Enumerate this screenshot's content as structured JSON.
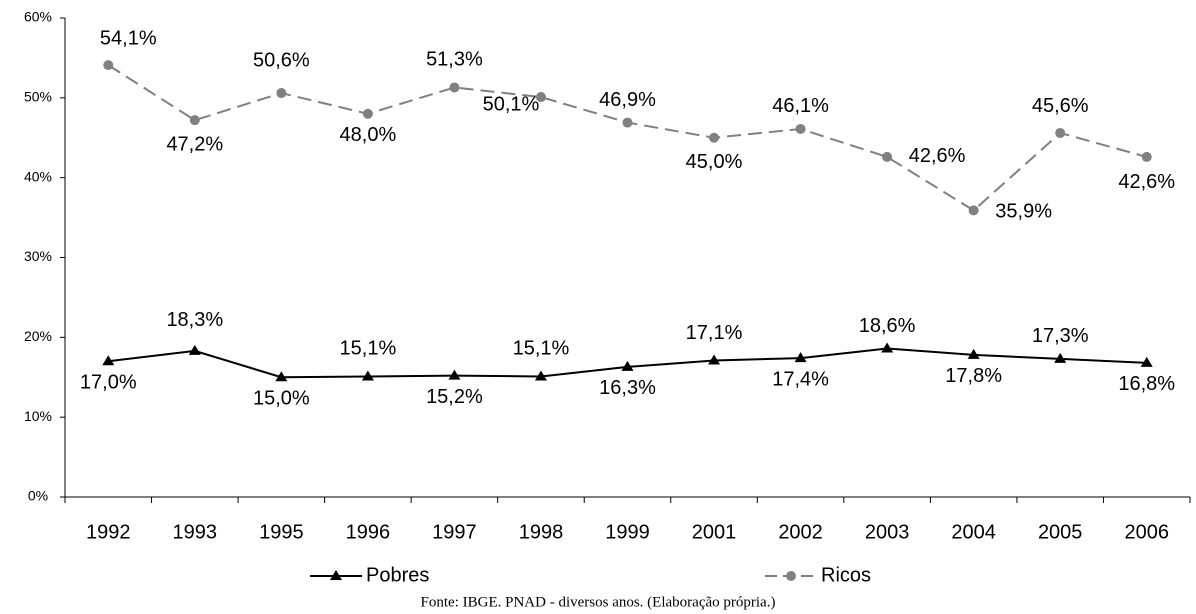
{
  "chart_data": {
    "type": "line",
    "categories": [
      "1992",
      "1993",
      "1995",
      "1996",
      "1997",
      "1998",
      "1999",
      "2001",
      "2002",
      "2003",
      "2004",
      "2005",
      "2006"
    ],
    "series": [
      {
        "name": "Pobres",
        "color": "#000000",
        "marker": "triangle",
        "dash": false,
        "values": [
          17.0,
          18.3,
          15.0,
          15.1,
          15.2,
          15.1,
          16.3,
          17.1,
          17.4,
          18.6,
          17.8,
          17.3,
          16.8
        ],
        "value_labels": [
          "17,0%",
          "18,3%",
          "15,0%",
          "15,1%",
          "15,2%",
          "15,1%",
          "16,3%",
          "17,1%",
          "17,4%",
          "18,6%",
          "17,8%",
          "17,3%",
          "16,8%"
        ]
      },
      {
        "name": "Ricos",
        "color": "#808080",
        "marker": "circle",
        "dash": true,
        "values": [
          54.1,
          47.2,
          50.6,
          48.0,
          51.3,
          50.1,
          46.9,
          45.0,
          46.1,
          42.6,
          35.9,
          45.6,
          42.6
        ],
        "value_labels": [
          "54,1%",
          "47,2%",
          "50,6%",
          "48,0%",
          "51,3%",
          "50,1%",
          "46,9%",
          "45,0%",
          "46,1%",
          "42,6%",
          "35,9%",
          "45,6%",
          "42,6%"
        ]
      }
    ],
    "ylim": [
      0,
      60
    ],
    "yticks": [
      {
        "value": 0,
        "label": "0%"
      },
      {
        "value": 10,
        "label": "10%"
      },
      {
        "value": 20,
        "label": "20%"
      },
      {
        "value": 30,
        "label": "30%"
      },
      {
        "value": 40,
        "label": "40%"
      },
      {
        "value": 50,
        "label": "50%"
      },
      {
        "value": 60,
        "label": "60%"
      }
    ],
    "legend": "bottom",
    "caption": "Fonte: IBGE. PNAD - diversos anos. (Elaboração própria.)"
  }
}
